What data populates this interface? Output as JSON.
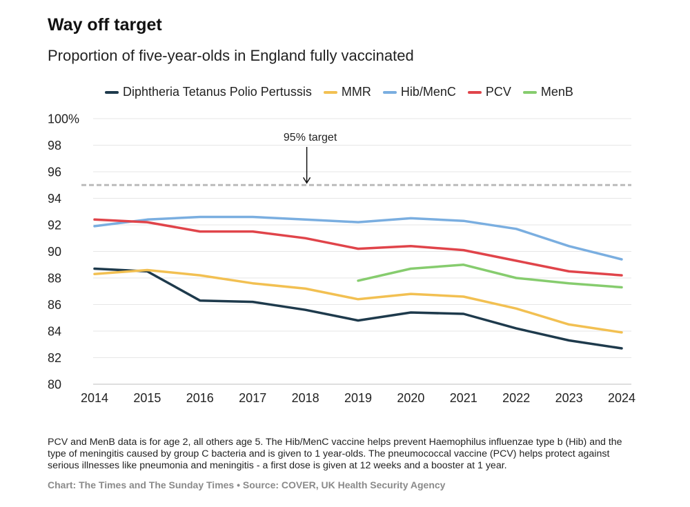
{
  "title": "Way off target",
  "subtitle": "Proportion of five-year-olds in England fully vaccinated",
  "footnote": "PCV and MenB data is for age 2, all others age 5. The Hib/MenC vaccine helps prevent Haemophilus influenzae type b (Hib) and the type of meningitis caused by group C bacteria and is given to 1 year-olds. The pneumococcal vaccine (PCV) helps protect against serious illnesses like pneumonia and meningitis - a first dose is given at 12 weeks and a booster at 1 year.",
  "credit": "Chart: The Times and The Sunday Times • Source: COVER, UK Health Security Agency",
  "colors": {
    "dtpp": "#1e3a4c",
    "mmr": "#f2c052",
    "hib": "#7aaee0",
    "pcv": "#e0444a",
    "menb": "#86cc6e",
    "target": "#bbbbbb",
    "grid": "#e6e6e6"
  },
  "chart_data": {
    "type": "line",
    "title": "Way off target",
    "subtitle": "Proportion of five-year-olds in England fully vaccinated",
    "x": [
      2014,
      2015,
      2016,
      2017,
      2018,
      2019,
      2020,
      2021,
      2022,
      2023,
      2024
    ],
    "ylim": [
      80,
      100
    ],
    "yticks": [
      80,
      82,
      84,
      86,
      88,
      90,
      92,
      94,
      96,
      98,
      100
    ],
    "ytick_labels": [
      "80",
      "82",
      "84",
      "86",
      "88",
      "90",
      "92",
      "94",
      "96",
      "98",
      "100%"
    ],
    "legend_position": "top",
    "grid": true,
    "series": [
      {
        "name": "Diphtheria Tetanus Polio Pertussis",
        "color_key": "dtpp",
        "values": [
          88.7,
          88.5,
          86.3,
          86.2,
          85.6,
          84.8,
          85.4,
          85.3,
          84.2,
          83.3,
          82.7
        ]
      },
      {
        "name": "MMR",
        "color_key": "mmr",
        "values": [
          88.3,
          88.6,
          88.2,
          87.6,
          87.2,
          86.4,
          86.8,
          86.6,
          85.7,
          84.5,
          83.9
        ]
      },
      {
        "name": "Hib/MenC",
        "color_key": "hib",
        "values": [
          91.9,
          92.4,
          92.6,
          92.6,
          92.4,
          92.2,
          92.5,
          92.3,
          91.7,
          90.4,
          89.4
        ]
      },
      {
        "name": "PCV",
        "color_key": "pcv",
        "values": [
          92.4,
          92.2,
          91.5,
          91.5,
          91.0,
          90.2,
          90.4,
          90.1,
          89.3,
          88.5,
          88.2
        ]
      },
      {
        "name": "MenB",
        "color_key": "menb",
        "values": [
          null,
          null,
          null,
          null,
          null,
          87.8,
          88.7,
          89.0,
          88.0,
          87.6,
          87.3
        ]
      }
    ],
    "target": {
      "value": 95,
      "label": "95% target",
      "label_x": 2018
    }
  }
}
